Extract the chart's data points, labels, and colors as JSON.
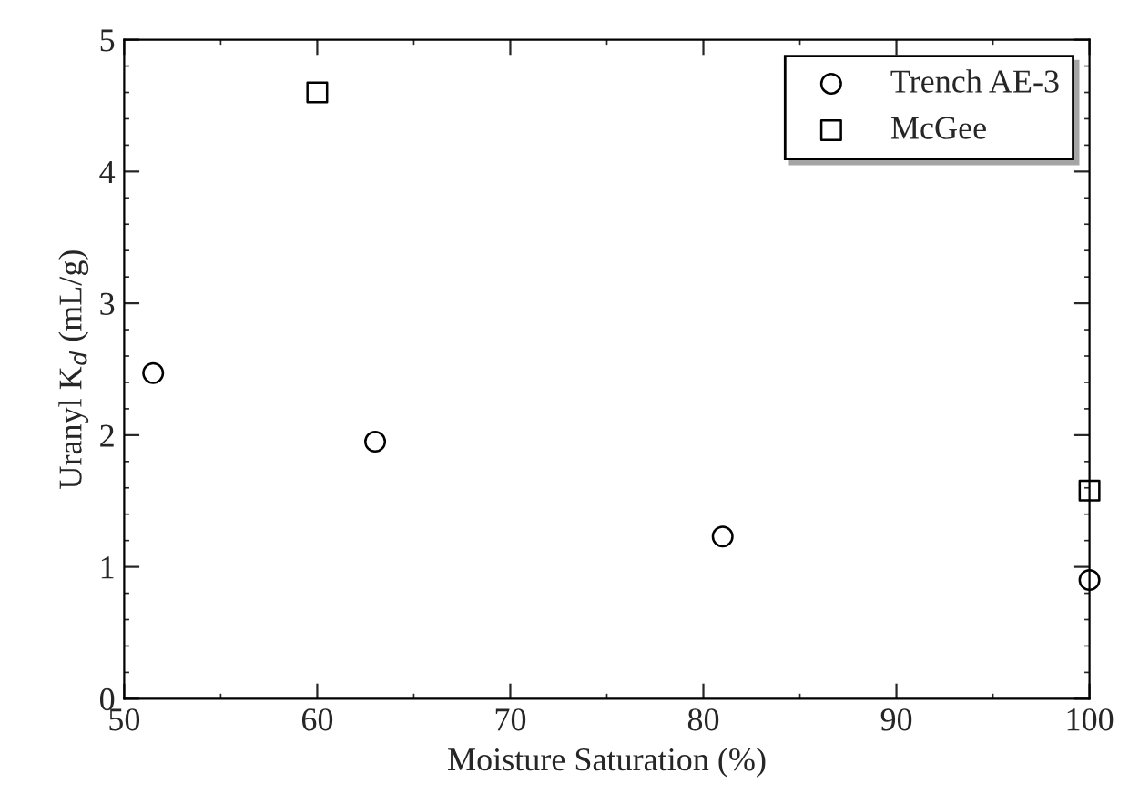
{
  "chart_data": {
    "type": "scatter",
    "xlabel": "Moisture Saturation (%)",
    "ylabel": "Uranyl K$_{d}$ (mL/g)",
    "series": [
      {
        "name": "Trench AE-3",
        "color": "#000000",
        "marker": "circle",
        "x": [
          51.5,
          63,
          81,
          100
        ],
        "values": [
          2.47,
          1.95,
          1.23,
          0.9
        ]
      },
      {
        "name": "McGee",
        "color": "#000000",
        "marker": "square",
        "x": [
          60,
          100
        ],
        "values": [
          4.6,
          1.58
        ]
      }
    ],
    "xlim": [
      50,
      100
    ],
    "xticks": [
      50,
      60,
      70,
      80,
      90,
      100
    ],
    "ylim": [
      0,
      5
    ],
    "yticks": [
      0,
      1,
      2,
      3,
      4,
      5
    ],
    "grid": false,
    "legend": "top right"
  }
}
